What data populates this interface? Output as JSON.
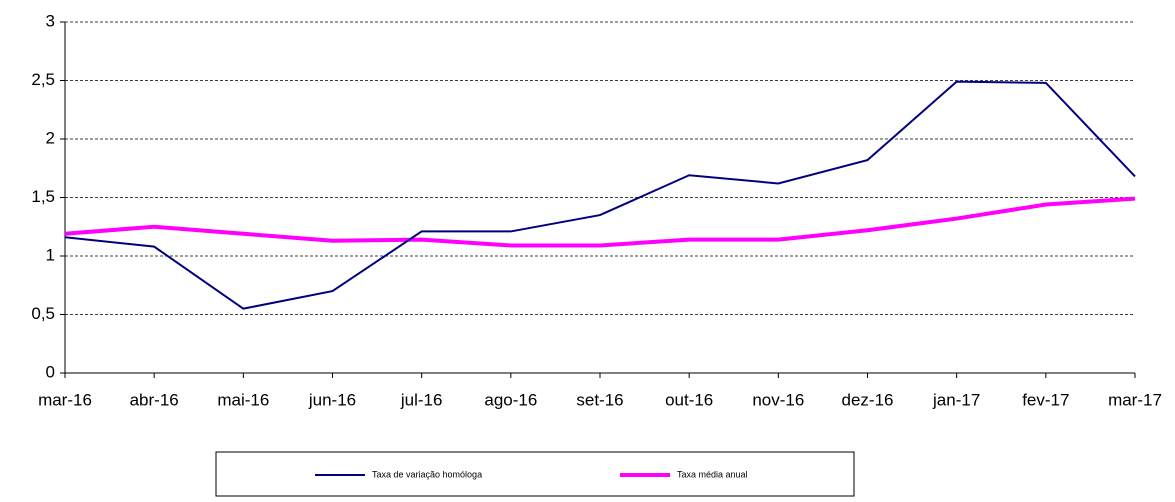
{
  "chart_data": {
    "type": "line",
    "categories": [
      "mar-16",
      "abr-16",
      "mai-16",
      "jun-16",
      "jul-16",
      "ago-16",
      "set-16",
      "out-16",
      "nov-16",
      "dez-16",
      "jan-17",
      "fev-17",
      "mar-17"
    ],
    "series": [
      {
        "name": "Taxa de variação homóloga",
        "color": "#000080",
        "values": [
          1.16,
          1.08,
          0.55,
          0.7,
          1.21,
          1.21,
          1.35,
          1.69,
          1.62,
          1.82,
          2.49,
          2.48,
          1.68
        ]
      },
      {
        "name": "Taxa média anual",
        "color": "#ff00ff",
        "values": [
          1.19,
          1.25,
          1.19,
          1.13,
          1.14,
          1.09,
          1.09,
          1.14,
          1.14,
          1.22,
          1.32,
          1.44,
          1.49
        ]
      }
    ],
    "ylim": [
      0,
      3
    ],
    "yticks": [
      0,
      {
        "value": 0.5,
        "label": "0,5"
      },
      1,
      {
        "value": 1.5,
        "label": "1,5"
      },
      2,
      {
        "value": 2.5,
        "label": "2,5"
      },
      3
    ],
    "grid": true,
    "legend": "bottom"
  }
}
